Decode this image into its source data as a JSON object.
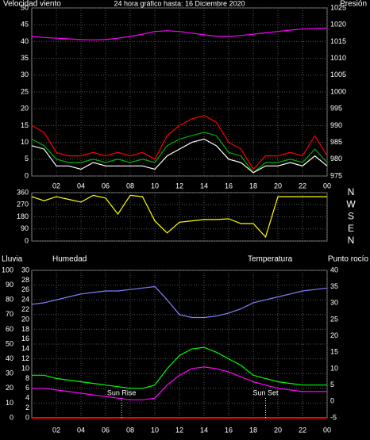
{
  "chart_data": [
    {
      "type": "line",
      "title": "24 hora gráfico hasta: 16 Diciembre 2020",
      "x": [
        0,
        1,
        2,
        3,
        4,
        5,
        6,
        7,
        8,
        9,
        10,
        11,
        12,
        13,
        14,
        15,
        16,
        17,
        18,
        19,
        20,
        21,
        22,
        23,
        24
      ],
      "xlim": [
        0,
        24
      ],
      "xticks": [
        {
          "value": 2,
          "label": "02"
        },
        {
          "value": 4,
          "label": "04"
        },
        {
          "value": 6,
          "label": "06"
        },
        {
          "value": 8,
          "label": "08"
        },
        10,
        12,
        14,
        16,
        18,
        20,
        22,
        {
          "value": 24,
          "label": "00"
        }
      ],
      "ylim": [
        0,
        50
      ],
      "yticks": [
        0,
        5,
        10,
        15,
        20,
        25,
        30,
        35,
        40,
        45,
        50
      ],
      "y2lim": [
        975,
        1025
      ],
      "y2ticks": [
        975,
        980,
        985,
        990,
        995,
        1000,
        1005,
        1010,
        1015,
        1020,
        1025
      ],
      "grid": true,
      "series": [
        {
          "name": "Velocidad viento",
          "color": "#ff0000",
          "values": [
            15,
            13,
            7,
            6,
            6,
            7,
            6,
            7,
            6,
            7,
            5,
            12,
            15,
            17,
            18,
            16,
            10,
            8,
            2,
            6,
            6,
            7,
            6,
            12,
            6
          ]
        },
        {
          "color": "#00b000",
          "values": [
            11,
            9,
            5,
            4,
            4,
            5,
            4,
            5,
            4,
            5,
            4,
            9,
            11,
            12,
            13,
            12,
            7,
            6,
            1,
            4,
            4,
            5,
            4,
            8,
            4
          ]
        },
        {
          "color": "#ffffff",
          "values": [
            9,
            8,
            3,
            3,
            2,
            4,
            3,
            3,
            3,
            3,
            2,
            6,
            8,
            10,
            11,
            9,
            5,
            4,
            1,
            3,
            3,
            4,
            3,
            6,
            3
          ]
        },
        {
          "name": "Presión",
          "color": "#ff00ff",
          "axis": "y2",
          "values": [
            1016.5,
            1016.2,
            1016,
            1015.8,
            1015.6,
            1015.5,
            1015.6,
            1016,
            1016.5,
            1017.2,
            1018,
            1018.2,
            1018,
            1017.5,
            1017,
            1016.6,
            1016.5,
            1016.8,
            1017.2,
            1017.6,
            1018,
            1018.4,
            1018.7,
            1018.9,
            1019
          ]
        }
      ]
    },
    {
      "type": "line",
      "x": [
        0,
        1,
        2,
        3,
        4,
        5,
        6,
        7,
        8,
        9,
        10,
        11,
        12,
        13,
        14,
        15,
        16,
        17,
        18,
        19,
        20,
        21,
        22,
        23,
        24
      ],
      "xlim": [
        0,
        24
      ],
      "ylim": [
        0,
        360
      ],
      "yticks": [
        0,
        90,
        180,
        270,
        360
      ],
      "y2lim": [
        0,
        360
      ],
      "y2ticks": [
        {
          "value": 0,
          "label": "N"
        },
        {
          "value": 90,
          "label": "E"
        },
        {
          "value": 180,
          "label": "S"
        },
        {
          "value": 270,
          "label": "W"
        },
        {
          "value": 360,
          "label": "N"
        }
      ],
      "grid": true,
      "series": [
        {
          "color": "#ffff00",
          "values": [
            330,
            300,
            330,
            310,
            290,
            340,
            320,
            200,
            340,
            330,
            150,
            60,
            140,
            150,
            160,
            160,
            165,
            130,
            130,
            30,
            330,
            330,
            330,
            330,
            330
          ]
        }
      ]
    },
    {
      "type": "line",
      "x": [
        0,
        1,
        2,
        3,
        4,
        5,
        6,
        7,
        8,
        9,
        10,
        11,
        12,
        13,
        14,
        15,
        16,
        17,
        18,
        19,
        20,
        21,
        22,
        23,
        24
      ],
      "xlim": [
        0,
        24
      ],
      "xticks": [
        {
          "value": 2,
          "label": "02"
        },
        {
          "value": 4,
          "label": "04"
        },
        {
          "value": 6,
          "label": "06"
        },
        {
          "value": 8,
          "label": "08"
        },
        10,
        12,
        14,
        16,
        18,
        20,
        22,
        {
          "value": 24,
          "label": "00"
        }
      ],
      "ylim": [
        0,
        30
      ],
      "yticks": [
        0,
        2,
        4,
        6,
        8,
        10,
        12,
        14,
        16,
        18,
        20,
        22,
        24,
        26,
        28,
        30
      ],
      "y2lim": [
        -5,
        40
      ],
      "y2ticks": [
        -5,
        0,
        5,
        10,
        15,
        20,
        25,
        30,
        35,
        40
      ],
      "y3lim": [
        0,
        100
      ],
      "y3ticks": [
        0,
        10,
        20,
        30,
        40,
        50,
        60,
        70,
        80,
        90,
        100
      ],
      "grid": true,
      "series": [
        {
          "name": "Lluvia",
          "color": "#ff0000",
          "axis": "y",
          "values": [
            0,
            0,
            0,
            0,
            0,
            0,
            0,
            0,
            0,
            0,
            0,
            0,
            0,
            0,
            0,
            0,
            0,
            0,
            0,
            0,
            0,
            0,
            0,
            0,
            0
          ]
        },
        {
          "name": "Humedad",
          "color": "#8080ff",
          "axis": "y3",
          "values": [
            77,
            78,
            80,
            82,
            84,
            85,
            86,
            86,
            87,
            88,
            89,
            80,
            70,
            68,
            68,
            69,
            71,
            74,
            78,
            80,
            82,
            84,
            86,
            87,
            88
          ]
        },
        {
          "name": "Temperatura",
          "color": "#00ff00",
          "axis": "y2",
          "values": [
            8,
            8,
            7,
            6.5,
            6,
            5.5,
            5,
            4.5,
            4,
            4,
            5,
            10,
            14,
            16,
            16.5,
            15,
            13,
            11,
            8,
            7,
            6,
            5.5,
            5,
            5,
            5
          ]
        },
        {
          "name": "Punto rocío",
          "color": "#ff00ff",
          "axis": "y2",
          "values": [
            4,
            4,
            3.5,
            3,
            2.5,
            2,
            1.5,
            1,
            0.5,
            0.5,
            1,
            5,
            8,
            10,
            10.5,
            10,
            9,
            7.5,
            6,
            5,
            4,
            3.5,
            3,
            3,
            3
          ]
        }
      ],
      "annotations": [
        {
          "text": "Sun Rise",
          "x": 7.3
        },
        {
          "text": "Sun Set",
          "x": 19
        }
      ]
    }
  ]
}
